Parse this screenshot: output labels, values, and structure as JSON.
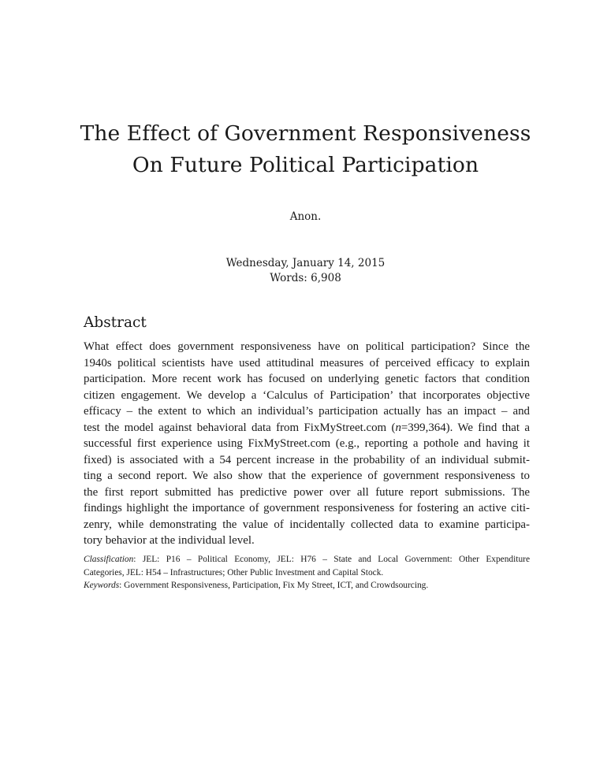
{
  "paper": {
    "title_lines": [
      "The Effect of Government Responsiveness",
      "On Future Political Participation"
    ],
    "author": "Anon.",
    "date": "Wednesday, January 14, 2015",
    "word_count": "Words: 6,908"
  },
  "abstract": {
    "heading": "Abstract",
    "lines": [
      "What effect does government responsiveness have on political participation? Since the",
      "1940s political scientists have used attitudinal measures of perceived efficacy to explain",
      "participation. More recent work has focused on underlying genetic factors that condition",
      "citizen engagement. We develop a ‘Calculus of Participation’ that incorporates objective",
      "efficacy – the extent to which an individual’s participation actually has an impact – and",
      "test the model against behavioral data from FixMyStreet.com (",
      "n",
      "=399,364). We find that a",
      "successful first experience using FixMyStreet.com (e.g., reporting a pothole and having it",
      "fixed) is associated with a 54 percent increase in the probability of an individual submit-",
      "ting a second report. We also show that the experience of government responsiveness to",
      "the first report submitted has predictive power over all future report submissions. The",
      "findings highlight the importance of government responsiveness for fostering an active citi-",
      "zenry, while demonstrating the value of incidentally collected data to examine participa-",
      "tory behavior at the individual level."
    ]
  },
  "classification": {
    "label": "Classification",
    "line1": ": JEL: P16 – Political Economy, JEL: H76 – State and Local Government: Other Expenditure",
    "line2": "Categories, JEL: H54 – Infrastructures; Other Public Investment and Capital Stock."
  },
  "keywords": {
    "label": "Keywords",
    "text": ": Government Responsiveness, Participation, Fix My Street, ICT, and Crowdsourcing."
  }
}
